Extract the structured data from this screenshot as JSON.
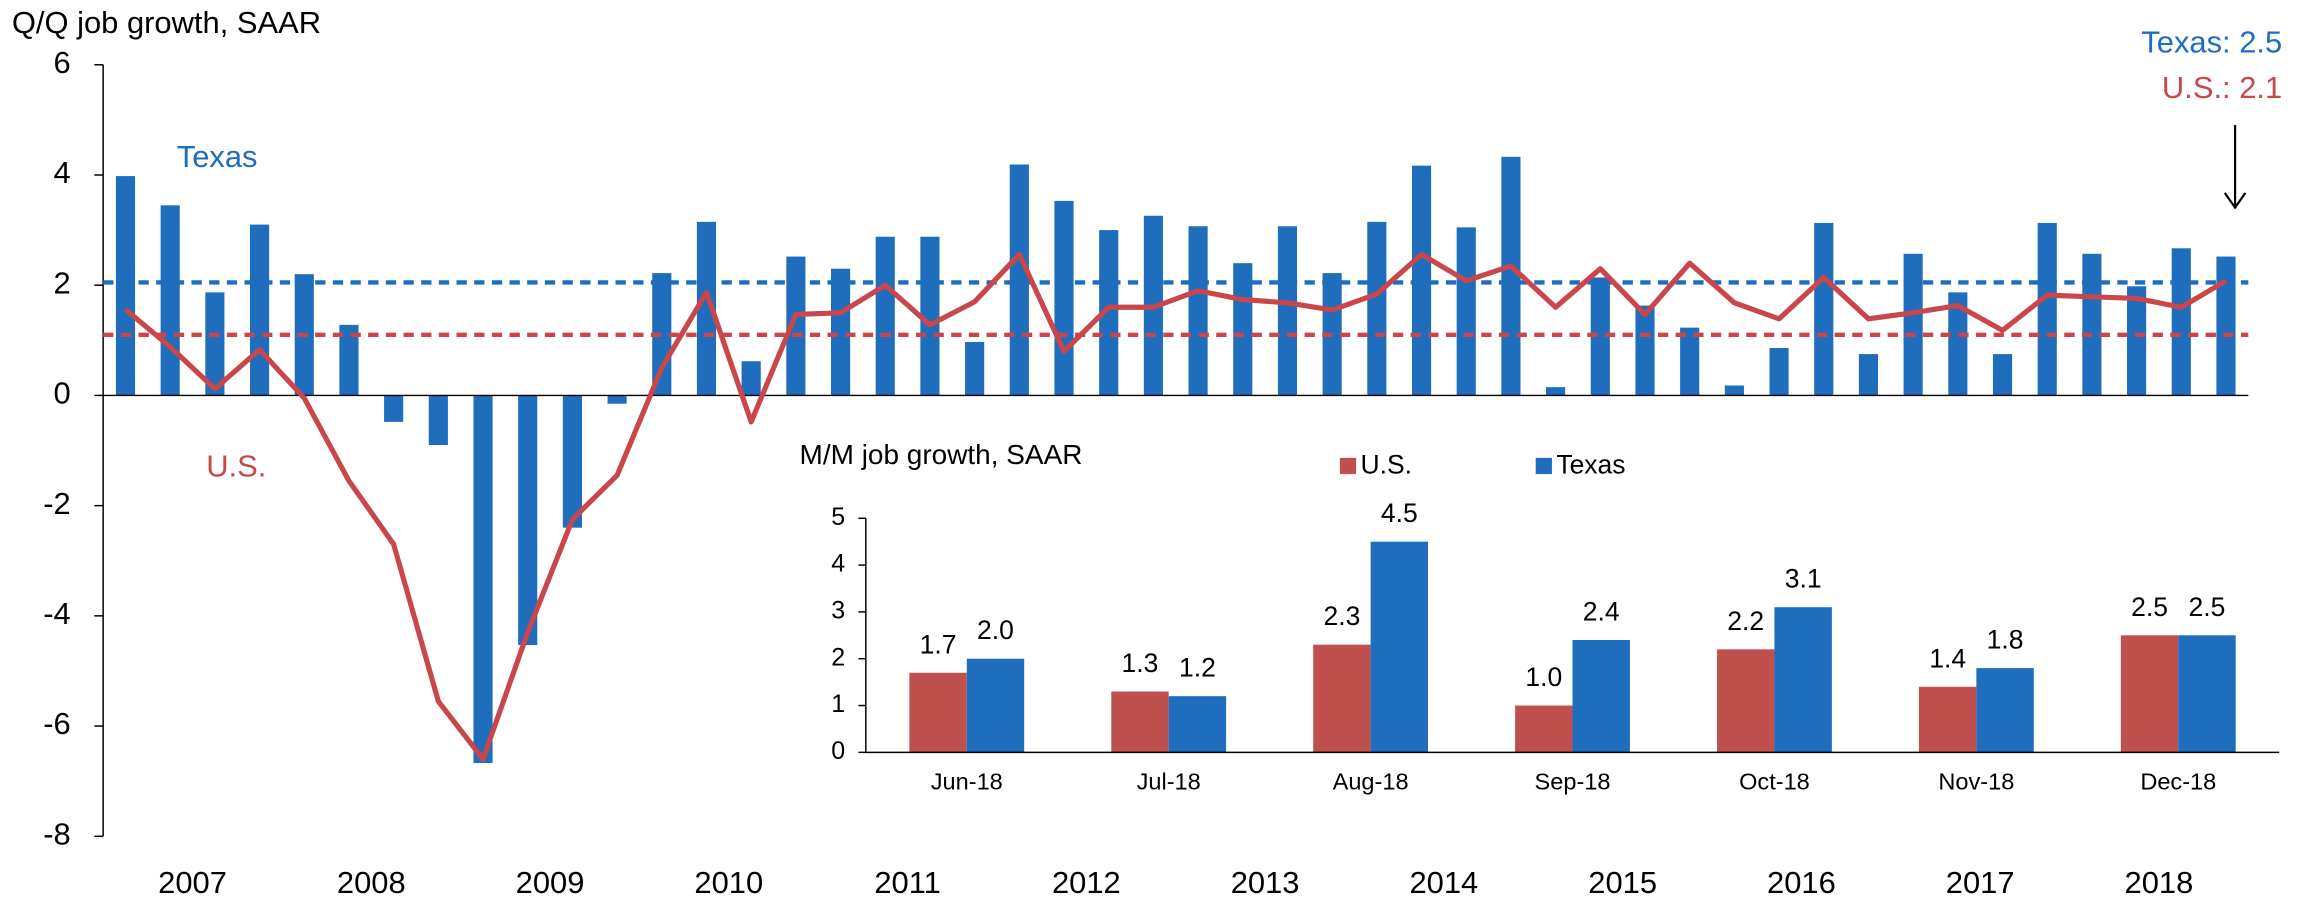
{
  "chart_data": [
    {
      "type": "bar-line",
      "y_label": "Q/Q job growth, SAAR",
      "categories": [
        "2007",
        null,
        null,
        null,
        "2008",
        null,
        null,
        null,
        "2009",
        null,
        null,
        null,
        "2010",
        null,
        null,
        null,
        "2011",
        null,
        null,
        null,
        "2012",
        null,
        null,
        null,
        "2013",
        null,
        null,
        null,
        "2014",
        null,
        null,
        null,
        "2015",
        null,
        null,
        null,
        "2016",
        null,
        null,
        null,
        "2017",
        null,
        null,
        null,
        "2018",
        null,
        null,
        null
      ],
      "series": [
        {
          "name": "Texas",
          "kind": "bar",
          "color": "#1f6dbd",
          "average": 2.05,
          "values": [
            3.98,
            3.45,
            1.87,
            3.1,
            2.2,
            1.28,
            -0.48,
            -0.9,
            -6.67,
            -4.53,
            -2.4,
            -0.15,
            2.22,
            3.15,
            0.62,
            2.52,
            2.3,
            2.88,
            2.88,
            0.97,
            4.19,
            3.53,
            3.0,
            3.26,
            3.07,
            2.4,
            3.07,
            2.22,
            3.15,
            4.17,
            3.05,
            4.33,
            0.15,
            2.14,
            1.63,
            1.23,
            0.18,
            0.86,
            3.13,
            0.75,
            2.57,
            1.87,
            0.75,
            3.13,
            2.57,
            1.98,
            2.67,
            2.52
          ]
        },
        {
          "name": "U.S.",
          "kind": "line",
          "color": "#c9464a",
          "average": 1.1,
          "values": [
            1.56,
            0.88,
            0.12,
            0.83,
            -0.05,
            -1.55,
            -2.7,
            -5.55,
            -6.6,
            -4.3,
            -2.25,
            -1.45,
            0.5,
            1.87,
            -0.48,
            1.47,
            1.5,
            2.0,
            1.28,
            1.7,
            2.56,
            0.8,
            1.6,
            1.6,
            1.9,
            1.74,
            1.68,
            1.55,
            1.84,
            2.56,
            2.08,
            2.35,
            1.6,
            2.3,
            1.47,
            2.4,
            1.68,
            1.39,
            2.14,
            1.39,
            1.5,
            1.63,
            1.18,
            1.82,
            1.79,
            1.76,
            1.6,
            2.08
          ]
        }
      ],
      "annotations": [
        {
          "text": "Texas: 2.5",
          "color": "#1f6dbd"
        },
        {
          "text": "U.S.: 2.1",
          "color": "#c9464a"
        }
      ],
      "ylim": [
        -8,
        6
      ],
      "yticks": [
        -8,
        -6,
        -4,
        -2,
        0,
        2,
        4,
        6
      ],
      "grid": false
    },
    {
      "type": "bar",
      "title": "M/M job growth, SAAR",
      "categories": [
        "Jun-18",
        "Jul-18",
        "Aug-18",
        "Sep-18",
        "Oct-18",
        "Nov-18",
        "Dec-18"
      ],
      "series": [
        {
          "name": "U.S.",
          "color": "#c0504d",
          "values": [
            1.7,
            1.3,
            2.3,
            1.0,
            2.2,
            1.4,
            2.5
          ],
          "value_labels": [
            "1.7",
            "1.3",
            "2.3",
            "1.0",
            "2.2",
            "1.4",
            "2.5"
          ]
        },
        {
          "name": "Texas",
          "color": "#1f6dbd",
          "values": [
            2.0,
            1.2,
            4.5,
            2.4,
            3.1,
            1.8,
            2.5
          ],
          "value_labels": [
            "2.0",
            "1.2",
            "4.5",
            "2.4",
            "3.1",
            "1.8",
            "2.5"
          ]
        }
      ],
      "ylim": [
        0,
        5
      ],
      "yticks": [
        0,
        1,
        2,
        3,
        4,
        5
      ],
      "grid": false
    }
  ]
}
